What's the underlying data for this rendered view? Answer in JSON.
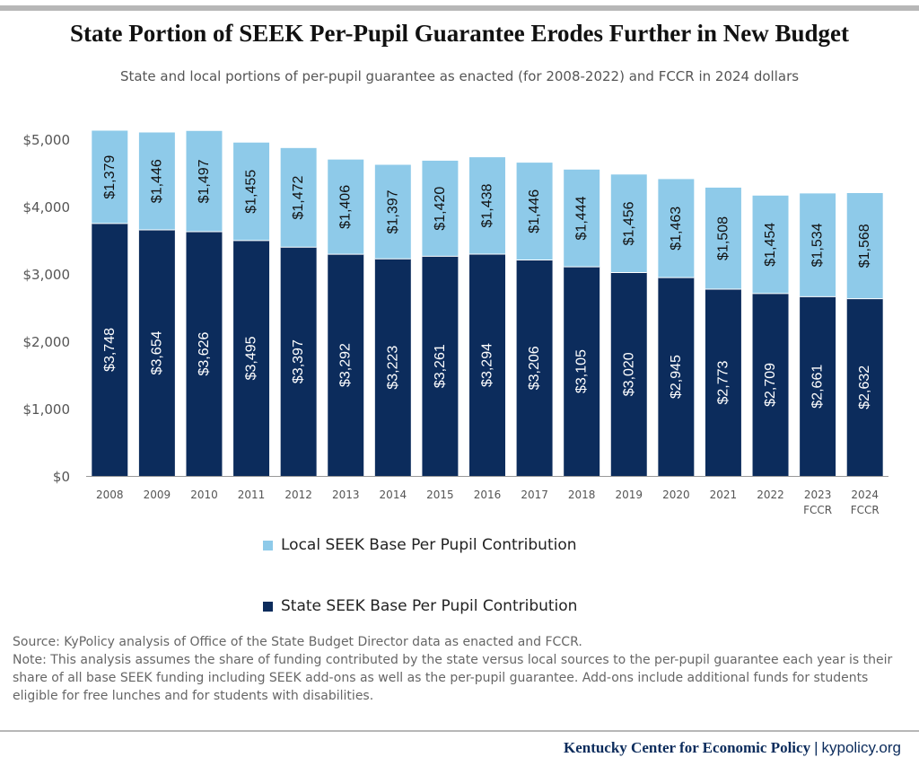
{
  "header": {
    "title": "State Portion of SEEK Per-Pupil Guarantee Erodes Further in New Budget",
    "subtitle": "State and local portions of per-pupil guarantee as enacted (for 2008-2022) and FCCR in 2024 dollars"
  },
  "colors": {
    "state": "#0c2c5c",
    "local": "#8ecae9",
    "axis_text": "#555555"
  },
  "chart_data": {
    "type": "bar",
    "stacked": true,
    "categories": [
      "2008",
      "2009",
      "2010",
      "2011",
      "2012",
      "2013",
      "2014",
      "2015",
      "2016",
      "2017",
      "2018",
      "2019",
      "2020",
      "2021",
      "2022",
      "2023 FCCR",
      "2024 FCCR"
    ],
    "series": [
      {
        "name": "State SEEK Base Per Pupil Contribution",
        "values": [
          3748,
          3654,
          3626,
          3495,
          3397,
          3292,
          3223,
          3261,
          3294,
          3206,
          3105,
          3020,
          2945,
          2773,
          2709,
          2661,
          2632
        ],
        "labels": [
          "$3,748",
          "$3,654",
          "$3,626",
          "$3,495",
          "$3,397",
          "$3,292",
          "$3,223",
          "$3,261",
          "$3,294",
          "$3,206",
          "$3,105",
          "$3,020",
          "$2,945",
          "$2,773",
          "$2,709",
          "$2,661",
          "$2,632"
        ]
      },
      {
        "name": "Local SEEK Base Per Pupil Contribution",
        "values": [
          1379,
          1446,
          1497,
          1455,
          1472,
          1406,
          1397,
          1420,
          1438,
          1446,
          1444,
          1456,
          1463,
          1508,
          1454,
          1534,
          1568
        ],
        "labels": [
          "$1,379",
          "$1,446",
          "$1,497",
          "$1,455",
          "$1,472",
          "$1,406",
          "$1,397",
          "$1,420",
          "$1,438",
          "$1,446",
          "$1,444",
          "$1,456",
          "$1,463",
          "$1,508",
          "$1,454",
          "$1,534",
          "$1,568"
        ]
      }
    ],
    "ylim": [
      0,
      5000
    ],
    "yticks": [
      0,
      1000,
      2000,
      3000,
      4000,
      5000
    ],
    "ytick_labels": [
      "$0",
      "$1,000",
      "$2,000",
      "$3,000",
      "$4,000",
      "$5,000"
    ],
    "grid": false,
    "legend_placement": "bottom"
  },
  "legend": {
    "local_label": "Local SEEK Base Per Pupil Contribution",
    "state_label": "State SEEK Base Per Pupil Contribution"
  },
  "notes": {
    "source": "Source: KyPolicy analysis of Office of the State Budget Director data as enacted and FCCR.",
    "note": "Note: This analysis assumes the share of funding contributed by the state versus local sources to the per-pupil guarantee each year is their share of all base SEEK funding including SEEK add-ons as well as the per-pupil guarantee. Add-ons include additional funds for students eligible for free lunches and for students with disabilities."
  },
  "footer": {
    "org": "Kentucky Center for Economic Policy",
    "separator": "|",
    "url": "kypolicy.org"
  }
}
